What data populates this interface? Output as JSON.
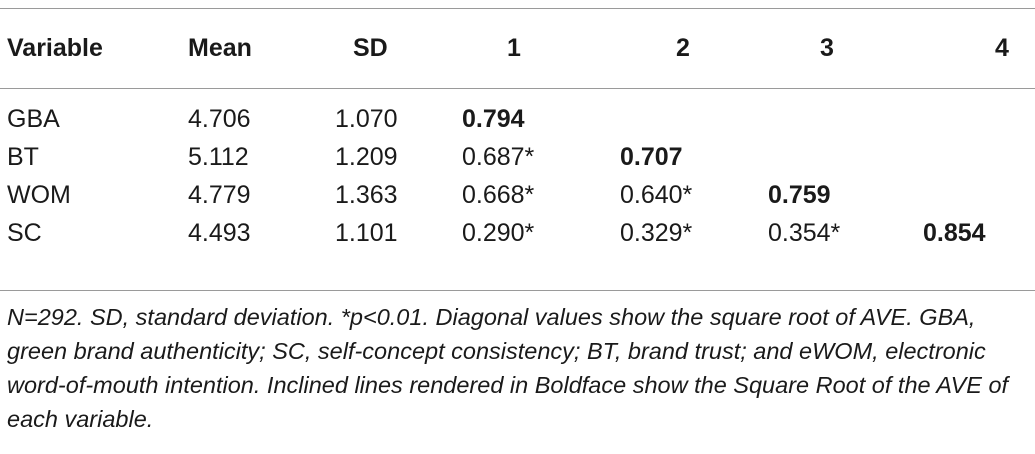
{
  "table": {
    "headers": [
      "Variable",
      "Mean",
      "SD",
      "1",
      "2",
      "3",
      "4"
    ],
    "rows": [
      {
        "variable": "GBA",
        "mean": "4.706",
        "sd": "1.070",
        "c1": "0.794",
        "c2": "",
        "c3": "",
        "c4": ""
      },
      {
        "variable": "BT",
        "mean": "5.112",
        "sd": "1.209",
        "c1": "0.687*",
        "c2": "0.707",
        "c3": "",
        "c4": ""
      },
      {
        "variable": "WOM",
        "mean": "4.779",
        "sd": "1.363",
        "c1": "0.668*",
        "c2": "0.640*",
        "c3": "0.759",
        "c4": ""
      },
      {
        "variable": "SC",
        "mean": "4.493",
        "sd": "1.101",
        "c1": "0.290*",
        "c2": "0.329*",
        "c3": "0.354*",
        "c4": "0.854"
      }
    ],
    "note": "N=292. SD, standard deviation. *p<0.01. Diagonal values show the square root of AVE. GBA, green brand authenticity; SC, self-concept consistency; BT, brand trust; and eWOM, electronic word-of-mouth intention. Inclined lines rendered in Boldface show the Square Root of the AVE of each variable."
  }
}
